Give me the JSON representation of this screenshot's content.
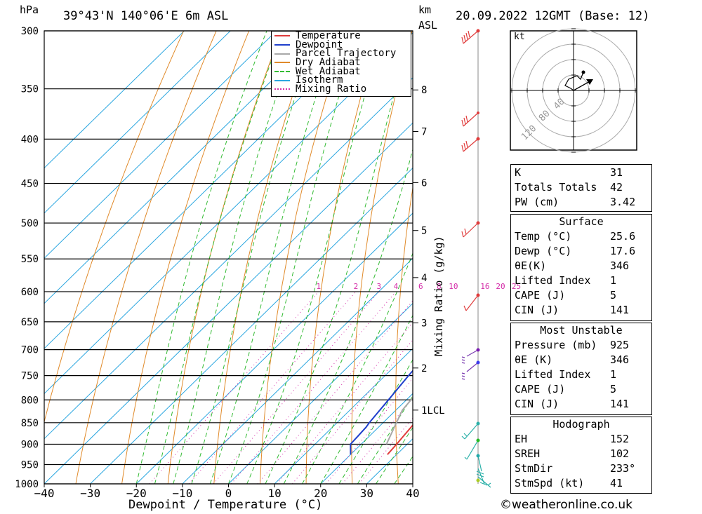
{
  "header": {
    "left_unit": "hPa",
    "location": "39°43'N 140°06'E 6m ASL",
    "km_label": "km",
    "asl_label": "ASL",
    "datetime": "20.09.2022 12GMT (Base: 12)"
  },
  "hodograph": {
    "unit": "kt",
    "ring_labels": [
      "40",
      "80",
      "120"
    ]
  },
  "colors": {
    "temperature": "#e03c3c",
    "dewpoint": "#1f3fcc",
    "parcel": "#a8a8a8",
    "dry_adiabat": "#e08a2a",
    "wet_adiabat": "#33bb33",
    "isotherm": "#2aa6e0",
    "mixing_ratio": "#d42ca8"
  },
  "chart_data": {
    "type": "line",
    "title": "39°43'N 140°06'E 6m ASL",
    "xlabel": "Dewpoint / Temperature (°C)",
    "ylabel": "hPa",
    "y2label": "Mixing Ratio (g/kg)",
    "xlim": [
      -40,
      40
    ],
    "ylim": [
      1000,
      300
    ],
    "x_ticks": [
      "−40",
      "−30",
      "−20",
      "−10",
      "0",
      "10",
      "20",
      "30",
      "40"
    ],
    "pressure_levels": [
      300,
      350,
      400,
      450,
      500,
      550,
      600,
      650,
      700,
      750,
      800,
      850,
      900,
      950,
      1000
    ],
    "km_ticks": [
      {
        "label": "1LCL",
        "p": 822
      },
      {
        "label": "2",
        "p": 735
      },
      {
        "label": "3",
        "p": 652
      },
      {
        "label": "4",
        "p": 578
      },
      {
        "label": "5",
        "p": 510
      },
      {
        "label": "6",
        "p": 449
      },
      {
        "label": "7",
        "p": 392
      },
      {
        "label": "8",
        "p": 351
      }
    ],
    "mixing_ratio_labels": [
      "1",
      "2",
      "3",
      "4",
      "6",
      "8",
      "10",
      "16",
      "20",
      "25"
    ],
    "legend": [
      "Temperature",
      "Dewpoint",
      "Parcel Trajectory",
      "Dry Adiabat",
      "Wet Adiabat",
      "Isotherm",
      "Mixing Ratio"
    ],
    "legend_position": "top-right",
    "series": [
      {
        "name": "Temperature",
        "points": [
          {
            "p": 925,
            "x": 28
          },
          {
            "p": 900,
            "x": 27.7
          },
          {
            "p": 850,
            "x": 26.9
          },
          {
            "p": 800,
            "x": 25.6
          },
          {
            "p": 750,
            "x": 24.6
          },
          {
            "p": 700,
            "x": 24.3
          },
          {
            "p": 650,
            "x": 24.3
          },
          {
            "p": 600,
            "x": 24.9
          },
          {
            "p": 550,
            "x": 25.4
          },
          {
            "p": 530,
            "x": 26.3
          },
          {
            "p": 500,
            "x": 26.4
          },
          {
            "p": 475,
            "x": 27.7
          },
          {
            "p": 450,
            "x": 27.4
          },
          {
            "p": 400,
            "x": 28.9
          },
          {
            "p": 395,
            "x": 30.4
          },
          {
            "p": 370,
            "x": 29.7
          },
          {
            "p": 360,
            "x": 29.6
          }
        ]
      },
      {
        "name": "Dewpoint",
        "points": [
          {
            "p": 925,
            "x": 20
          },
          {
            "p": 900,
            "x": 17.7
          },
          {
            "p": 860,
            "x": 17.3
          },
          {
            "p": 850,
            "x": 17
          },
          {
            "p": 800,
            "x": 16.1
          },
          {
            "p": 750,
            "x": 15.1
          },
          {
            "p": 700,
            "x": 14.3
          },
          {
            "p": 650,
            "x": 13.3
          },
          {
            "p": 630,
            "x": 11.6
          },
          {
            "p": 600,
            "x": 6.8
          },
          {
            "p": 590,
            "x": 7.2
          },
          {
            "p": 565,
            "x": 16.5
          },
          {
            "p": 540,
            "x": 2.4
          },
          {
            "p": 520,
            "x": 9.3
          },
          {
            "p": 510,
            "x": 15.6
          },
          {
            "p": 500,
            "x": 14.3
          },
          {
            "p": 492,
            "x": 17.4
          },
          {
            "p": 485,
            "x": 14.7
          },
          {
            "p": 475,
            "x": 3.5
          },
          {
            "p": 450,
            "x": 2.3
          },
          {
            "p": 440,
            "x": 9.5
          },
          {
            "p": 420,
            "x": 7.8
          },
          {
            "p": 410,
            "x": 13.1
          },
          {
            "p": 400,
            "x": 11.5
          },
          {
            "p": 375,
            "x": 10.6
          },
          {
            "p": 360,
            "x": 9.8
          }
        ]
      },
      {
        "name": "Parcel Trajectory",
        "points": [
          {
            "p": 900,
            "x": 25.5
          },
          {
            "p": 850,
            "x": 22.9
          },
          {
            "p": 822,
            "x": 21.4
          },
          {
            "p": 800,
            "x": 21
          },
          {
            "p": 750,
            "x": 20.8
          },
          {
            "p": 700,
            "x": 21.4
          },
          {
            "p": 650,
            "x": 22.3
          },
          {
            "p": 600,
            "x": 23.2
          },
          {
            "p": 550,
            "x": 24.1
          },
          {
            "p": 500,
            "x": 25.2
          },
          {
            "p": 450,
            "x": 26.1
          },
          {
            "p": 400,
            "x": 26.6
          },
          {
            "p": 360,
            "x": 25.5
          }
        ]
      }
    ]
  },
  "indices": {
    "general": [
      {
        "label": "K",
        "value": "31"
      },
      {
        "label": "Totals Totals",
        "value": "42"
      },
      {
        "label": "PW (cm)",
        "value": "3.42"
      }
    ],
    "surface_title": "Surface",
    "surface": [
      {
        "label": "Temp (°C)",
        "value": "25.6"
      },
      {
        "label": "Dewp (°C)",
        "value": "17.6"
      },
      {
        "label": "θE(K)",
        "value": "346"
      },
      {
        "label": "Lifted Index",
        "value": "1"
      },
      {
        "label": "CAPE (J)",
        "value": "5"
      },
      {
        "label": "CIN (J)",
        "value": "141"
      }
    ],
    "unstable_title": "Most Unstable",
    "unstable": [
      {
        "label": "Pressure (mb)",
        "value": "925"
      },
      {
        "label": "θE (K)",
        "value": "346"
      },
      {
        "label": "Lifted Index",
        "value": "1"
      },
      {
        "label": "CAPE (J)",
        "value": "5"
      },
      {
        "label": "CIN (J)",
        "value": "141"
      }
    ],
    "hodo_title": "Hodograph",
    "hodo": [
      {
        "label": "EH",
        "value": "152"
      },
      {
        "label": "SREH",
        "value": "102"
      },
      {
        "label": "StmDir",
        "value": "233°"
      },
      {
        "label": "StmSpd (kt)",
        "value": "41"
      }
    ]
  },
  "footer": {
    "watermark": "©weatheronline.co.uk"
  }
}
